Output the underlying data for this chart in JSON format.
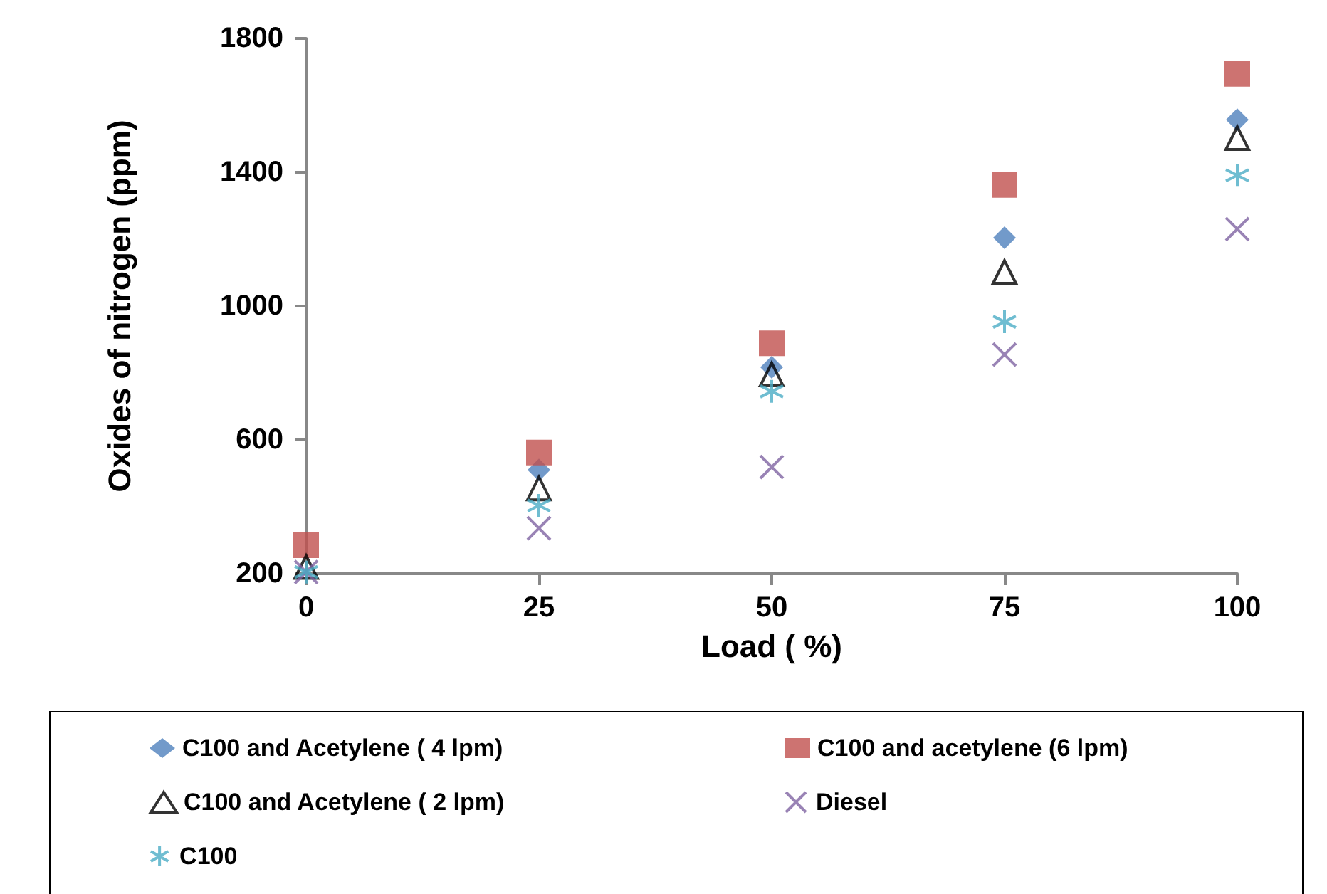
{
  "chart_data": {
    "type": "scatter",
    "xlabel": "Load ( %)",
    "ylabel": "Oxides of nitrogen (ppm)",
    "x": [
      0,
      25,
      50,
      75,
      100
    ],
    "series": [
      {
        "name": "C100 and Acetylene ( 4 lpm)",
        "color": "#4f81bd",
        "marker": "diamond",
        "values": [
          null,
          510,
          817,
          1204,
          1557
        ]
      },
      {
        "name": "C100 and acetylene (6 lpm)",
        "color": "#c0504d",
        "marker": "square",
        "values": [
          285,
          562,
          889,
          1362,
          1694
        ]
      },
      {
        "name": "C100 and Acetylene ( 2 lpm)",
        "color": "#000000",
        "marker": "triangle",
        "values": [
          220,
          455,
          796,
          1102,
          1502
        ]
      },
      {
        "name": "Diesel",
        "color": "#8064a2",
        "marker": "cross",
        "values": [
          205,
          336,
          519,
          855,
          1230
        ]
      },
      {
        "name": "C100",
        "color": "#4bacc6",
        "values": [
          205,
          404,
          745,
          953,
          1391
        ]
      }
    ],
    "xlim": [
      0,
      100
    ],
    "xticks": [
      0,
      25,
      50,
      75,
      100
    ],
    "ylim": [
      200,
      1800
    ],
    "yticks": [
      200,
      600,
      1000,
      1400,
      1800
    ],
    "grid": false,
    "legend": "bottom"
  }
}
